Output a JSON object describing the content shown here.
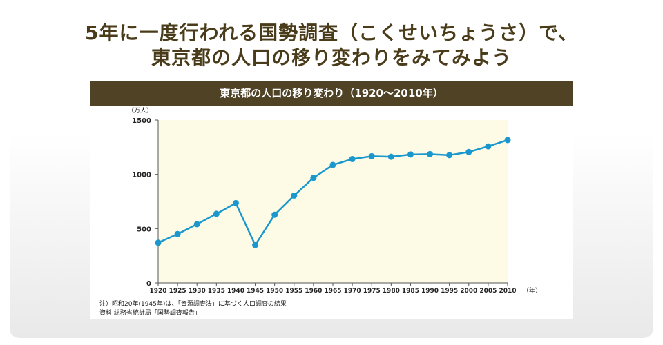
{
  "headline": {
    "line1": "5年に一度行われる国勢調査（こくせいちょうさ）で、",
    "line2": "東京都の人口の移り変わりをみてみよう"
  },
  "chart_data": {
    "type": "line",
    "title": "東京都の人口の移り変わり（1920〜2010年）",
    "ylabel": "（万人）",
    "xlabel": "（年）",
    "x": [
      1920,
      1925,
      1930,
      1935,
      1940,
      1945,
      1950,
      1955,
      1960,
      1965,
      1970,
      1975,
      1980,
      1985,
      1990,
      1995,
      2000,
      2005,
      2010
    ],
    "values": [
      370,
      450,
      541,
      636,
      735,
      349,
      628,
      804,
      968,
      1087,
      1141,
      1167,
      1162,
      1183,
      1186,
      1177,
      1206,
      1258,
      1316
    ],
    "xlim": [
      1920,
      2010
    ],
    "ylim": [
      0,
      1500
    ],
    "yticks": [
      0,
      500,
      1000,
      1500
    ],
    "grid": false,
    "colors": {
      "line": "#1a97cc",
      "marker": "#1a97cc",
      "plot_bg": "#fdfbe6",
      "bar": "#4f4225"
    }
  },
  "notes": {
    "note1": "注）昭和20年(1945年)は、「資源調査法」に基づく人口調査の結果",
    "note2": "資料 総務省統計局「国勢調査報告」"
  }
}
